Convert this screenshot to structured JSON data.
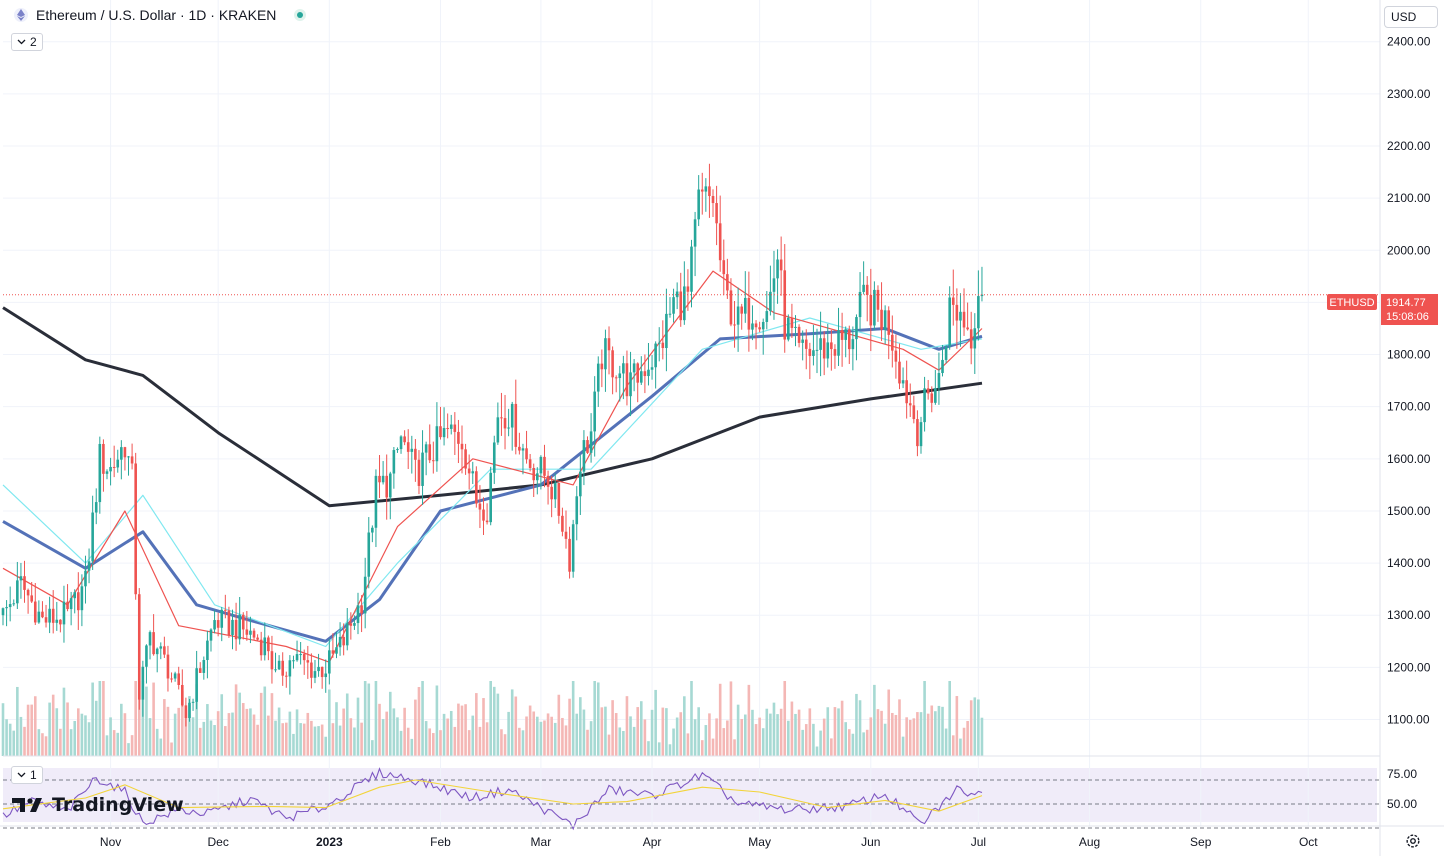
{
  "header": {
    "title": "Ethereum / U.S. Dollar · 1D · KRAKEN",
    "indicator_count": "2",
    "rsi_count": "1"
  },
  "price_axis": {
    "currency": "USD"
  },
  "last_price": {
    "symbol": "ETHUSD",
    "price": "1914.77",
    "countdown": "15:08:06"
  },
  "branding": {
    "logo_text": "TradingView"
  },
  "icons": {
    "asset": "ethereum-icon",
    "status": "market-open-icon",
    "chevron": "chevron-down-icon",
    "settings": "gear-icon"
  },
  "colors": {
    "up": "#26a69a",
    "down": "#ef5350",
    "ma200": "#2a2e39",
    "ma50": "#5472b8",
    "ma20": "#80e8f0",
    "ema10": "#ef5350",
    "rsi": "#7e57c2",
    "rsi_ma": "#f2d43a"
  },
  "chart_data": [
    {
      "type": "candlestick",
      "title": "Ethereum / U.S. Dollar · 1D · KRAKEN",
      "ylim": [
        1030,
        2480
      ],
      "y_ticks": [
        "1100.00",
        "1200.00",
        "1300.00",
        "1400.00",
        "1500.00",
        "1600.00",
        "1700.00",
        "1800.00",
        "1900.00",
        "2000.00",
        "2100.00",
        "2200.00",
        "2300.00",
        "2400.00"
      ],
      "x_ticks": [
        {
          "label": "Nov",
          "date": "2022-11-01"
        },
        {
          "label": "Dec",
          "date": "2022-12-01"
        },
        {
          "label": "2023",
          "date": "2023-01-01"
        },
        {
          "label": "Feb",
          "date": "2023-02-01"
        },
        {
          "label": "Mar",
          "date": "2023-03-01"
        },
        {
          "label": "Apr",
          "date": "2023-04-01"
        },
        {
          "label": "May",
          "date": "2023-05-01"
        },
        {
          "label": "Jun",
          "date": "2023-06-01"
        },
        {
          "label": "Jul",
          "date": "2023-07-01"
        },
        {
          "label": "Aug",
          "date": "2023-08-01"
        },
        {
          "label": "Sep",
          "date": "2023-09-01"
        },
        {
          "label": "Oct",
          "date": "2023-10-01"
        }
      ],
      "x_range": [
        "2022-10-02",
        "2023-10-21"
      ],
      "last_date": "2023-07-02",
      "last_value": 1914.77,
      "close_path": [
        [
          "2022-10-02",
          1300
        ],
        [
          "2022-10-07",
          1360
        ],
        [
          "2022-10-13",
          1290
        ],
        [
          "2022-10-20",
          1300
        ],
        [
          "2022-10-25",
          1360
        ],
        [
          "2022-10-29",
          1600
        ],
        [
          "2022-11-01",
          1580
        ],
        [
          "2022-11-05",
          1630
        ],
        [
          "2022-11-07",
          1560
        ],
        [
          "2022-11-09",
          1150
        ],
        [
          "2022-11-12",
          1260
        ],
        [
          "2022-11-17",
          1200
        ],
        [
          "2022-11-22",
          1110
        ],
        [
          "2022-11-26",
          1200
        ],
        [
          "2022-11-30",
          1290
        ],
        [
          "2022-12-05",
          1280
        ],
        [
          "2022-12-10",
          1265
        ],
        [
          "2022-12-15",
          1240
        ],
        [
          "2022-12-17",
          1180
        ],
        [
          "2022-12-22",
          1220
        ],
        [
          "2022-12-28",
          1195
        ],
        [
          "2022-12-31",
          1200
        ],
        [
          "2023-01-05",
          1250
        ],
        [
          "2023-01-10",
          1330
        ],
        [
          "2023-01-14",
          1540
        ],
        [
          "2023-01-18",
          1560
        ],
        [
          "2023-01-21",
          1640
        ],
        [
          "2023-01-25",
          1570
        ],
        [
          "2023-01-30",
          1620
        ],
        [
          "2023-02-03",
          1650
        ],
        [
          "2023-02-07",
          1640
        ],
        [
          "2023-02-11",
          1520
        ],
        [
          "2023-02-14",
          1510
        ],
        [
          "2023-02-17",
          1690
        ],
        [
          "2023-02-20",
          1690
        ],
        [
          "2023-02-25",
          1600
        ],
        [
          "2023-02-28",
          1580
        ],
        [
          "2023-03-03",
          1565
        ],
        [
          "2023-03-07",
          1480
        ],
        [
          "2023-03-09",
          1410
        ],
        [
          "2023-03-12",
          1600
        ],
        [
          "2023-03-15",
          1650
        ],
        [
          "2023-03-18",
          1800
        ],
        [
          "2023-03-22",
          1780
        ],
        [
          "2023-03-26",
          1740
        ],
        [
          "2023-03-30",
          1780
        ],
        [
          "2023-04-03",
          1810
        ],
        [
          "2023-04-07",
          1900
        ],
        [
          "2023-04-11",
          1910
        ],
        [
          "2023-04-14",
          2090
        ],
        [
          "2023-04-18",
          2100
        ],
        [
          "2023-04-21",
          1920
        ],
        [
          "2023-04-25",
          1860
        ],
        [
          "2023-04-29",
          1890
        ],
        [
          "2023-05-03",
          1880
        ],
        [
          "2023-05-06",
          1990
        ],
        [
          "2023-05-08",
          1860
        ],
        [
          "2023-05-12",
          1800
        ],
        [
          "2023-05-17",
          1810
        ],
        [
          "2023-05-22",
          1820
        ],
        [
          "2023-05-26",
          1830
        ],
        [
          "2023-05-30",
          1900
        ],
        [
          "2023-06-03",
          1880
        ],
        [
          "2023-06-06",
          1860
        ],
        [
          "2023-06-10",
          1750
        ],
        [
          "2023-06-14",
          1660
        ],
        [
          "2023-06-17",
          1720
        ],
        [
          "2023-06-20",
          1750
        ],
        [
          "2023-06-23",
          1890
        ],
        [
          "2023-06-26",
          1880
        ],
        [
          "2023-06-29",
          1840
        ],
        [
          "2023-07-01",
          1930
        ],
        [
          "2023-07-02",
          1914.77
        ]
      ],
      "overlays": [
        {
          "kind": "SMA 200",
          "color": "#2a2e39",
          "points": [
            [
              "2022-10-02",
              1890
            ],
            [
              "2022-10-25",
              1790
            ],
            [
              "2022-11-10",
              1760
            ],
            [
              "2022-12-01",
              1650
            ],
            [
              "2023-01-01",
              1510
            ],
            [
              "2023-02-01",
              1530
            ],
            [
              "2023-03-01",
              1550
            ],
            [
              "2023-04-01",
              1600
            ],
            [
              "2023-05-01",
              1680
            ],
            [
              "2023-06-01",
              1715
            ],
            [
              "2023-07-02",
              1745
            ]
          ]
        },
        {
          "kind": "SMA 50",
          "color": "#5472b8",
          "points": [
            [
              "2022-10-02",
              1480
            ],
            [
              "2022-10-25",
              1390
            ],
            [
              "2022-11-10",
              1460
            ],
            [
              "2022-11-25",
              1320
            ],
            [
              "2022-12-10",
              1290
            ],
            [
              "2022-12-31",
              1250
            ],
            [
              "2023-01-15",
              1330
            ],
            [
              "2023-02-01",
              1500
            ],
            [
              "2023-03-01",
              1550
            ],
            [
              "2023-04-01",
              1720
            ],
            [
              "2023-04-20",
              1830
            ],
            [
              "2023-05-15",
              1840
            ],
            [
              "2023-06-05",
              1850
            ],
            [
              "2023-06-20",
              1810
            ],
            [
              "2023-07-02",
              1835
            ]
          ]
        },
        {
          "kind": "SMA 20",
          "color": "#80e8f0",
          "points": [
            [
              "2022-10-02",
              1550
            ],
            [
              "2022-10-25",
              1400
            ],
            [
              "2022-11-10",
              1530
            ],
            [
              "2022-11-30",
              1320
            ],
            [
              "2022-12-31",
              1240
            ],
            [
              "2023-01-20",
              1400
            ],
            [
              "2023-02-15",
              1580
            ],
            [
              "2023-03-15",
              1580
            ],
            [
              "2023-04-15",
              1810
            ],
            [
              "2023-05-15",
              1870
            ],
            [
              "2023-06-15",
              1810
            ],
            [
              "2023-07-02",
              1830
            ]
          ]
        },
        {
          "kind": "EMA 10",
          "color": "#ef5350",
          "points": [
            [
              "2022-10-02",
              1390
            ],
            [
              "2022-10-20",
              1320
            ],
            [
              "2022-11-05",
              1500
            ],
            [
              "2022-11-20",
              1280
            ],
            [
              "2022-12-20",
              1240
            ],
            [
              "2023-01-01",
              1210
            ],
            [
              "2023-01-20",
              1470
            ],
            [
              "2023-02-10",
              1600
            ],
            [
              "2023-03-10",
              1550
            ],
            [
              "2023-03-25",
              1740
            ],
            [
              "2023-04-18",
              1960
            ],
            [
              "2023-05-05",
              1880
            ],
            [
              "2023-06-10",
              1810
            ],
            [
              "2023-06-20",
              1770
            ],
            [
              "2023-07-02",
              1850
            ]
          ]
        }
      ]
    },
    {
      "type": "line",
      "title": "",
      "ylim": [
        35,
        80
      ],
      "y_ticks": [
        "75.00",
        "50.00"
      ],
      "bands": [
        70,
        50,
        30
      ],
      "series": [
        {
          "color": "#7e57c2",
          "points": [
            [
              "2022-10-02",
              40
            ],
            [
              "2022-10-10",
              52
            ],
            [
              "2022-10-20",
              44
            ],
            [
              "2022-10-28",
              72
            ],
            [
              "2022-11-05",
              60
            ],
            [
              "2022-11-10",
              34
            ],
            [
              "2022-11-20",
              45
            ],
            [
              "2022-11-28",
              42
            ],
            [
              "2022-12-10",
              54
            ],
            [
              "2022-12-20",
              38
            ],
            [
              "2022-12-31",
              48
            ],
            [
              "2023-01-15",
              76
            ],
            [
              "2023-01-25",
              70
            ],
            [
              "2023-02-10",
              55
            ],
            [
              "2023-02-20",
              62
            ],
            [
              "2023-03-10",
              32
            ],
            [
              "2023-03-20",
              62
            ],
            [
              "2023-04-01",
              57
            ],
            [
              "2023-04-15",
              74
            ],
            [
              "2023-04-25",
              50
            ],
            [
              "2023-05-10",
              45
            ],
            [
              "2023-05-25",
              48
            ],
            [
              "2023-06-05",
              58
            ],
            [
              "2023-06-15",
              33
            ],
            [
              "2023-06-25",
              62
            ],
            [
              "2023-07-02",
              58
            ]
          ]
        },
        {
          "color": "#f2d43a",
          "points": [
            [
              "2022-10-02",
              46
            ],
            [
              "2022-10-25",
              55
            ],
            [
              "2022-11-05",
              66
            ],
            [
              "2022-11-20",
              47
            ],
            [
              "2022-12-15",
              48
            ],
            [
              "2022-12-31",
              47
            ],
            [
              "2023-01-15",
              64
            ],
            [
              "2023-01-25",
              70
            ],
            [
              "2023-02-15",
              60
            ],
            [
              "2023-03-10",
              50
            ],
            [
              "2023-03-25",
              52
            ],
            [
              "2023-04-15",
              64
            ],
            [
              "2023-05-01",
              60
            ],
            [
              "2023-05-20",
              47
            ],
            [
              "2023-06-05",
              53
            ],
            [
              "2023-06-20",
              44
            ],
            [
              "2023-07-02",
              57
            ]
          ]
        }
      ]
    }
  ]
}
